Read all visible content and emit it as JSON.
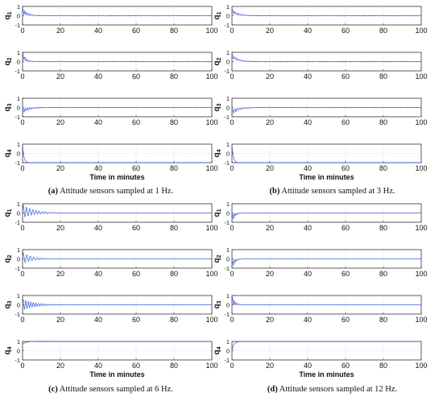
{
  "chart_data": [
    {
      "type": "line",
      "panel": "a",
      "caption_tag": "(a)",
      "caption": "Attitude sensors sampled at 1 Hz.",
      "xlabel": "Time in minutes",
      "xlim": [
        0,
        100
      ],
      "xticks": [
        0,
        20,
        40,
        60,
        80,
        100
      ],
      "grid": true,
      "line_color": "#3b5bdb",
      "subplots": [
        {
          "name": "q",
          "sub": "1",
          "ylim": [
            -1,
            1
          ],
          "yticks": [
            -1,
            0,
            1
          ],
          "final": 0,
          "initial": 0.5,
          "amp": 0.3,
          "tau": 2.5,
          "cycles_per_min": 1.0,
          "noise": 0.025
        },
        {
          "name": "q",
          "sub": "2",
          "ylim": [
            -1,
            1
          ],
          "yticks": [
            -1,
            0,
            1
          ],
          "final": 0,
          "initial": 0.7,
          "amp": 0.35,
          "tau": 1.5,
          "cycles_per_min": 1.1,
          "noise": 0.03
        },
        {
          "name": "q",
          "sub": "3",
          "ylim": [
            -1,
            1
          ],
          "yticks": [
            -1,
            0,
            1
          ],
          "final": 0,
          "initial": -0.4,
          "amp": 0.3,
          "tau": 3,
          "cycles_per_min": 0.9,
          "noise": 0.025
        },
        {
          "name": "q",
          "sub": "4",
          "ylim": [
            -1,
            1
          ],
          "yticks": [
            -1,
            0,
            1
          ],
          "final": -1,
          "initial": 0.9,
          "amp": 0,
          "tau": 0.7,
          "cycles_per_min": 0,
          "noise": 0.0
        }
      ]
    },
    {
      "type": "line",
      "panel": "b",
      "caption_tag": "(b)",
      "caption": "Attitude sensors sampled at 3 Hz.",
      "xlabel": "Time in minutes",
      "xlim": [
        0,
        100
      ],
      "xticks": [
        0,
        20,
        40,
        60,
        80,
        100
      ],
      "grid": true,
      "line_color": "#3b5bdb",
      "subplots": [
        {
          "name": "q",
          "sub": "1",
          "ylim": [
            -1,
            1
          ],
          "yticks": [
            -1,
            0,
            1
          ],
          "final": 0,
          "initial": 0.5,
          "amp": 0.25,
          "tau": 3,
          "cycles_per_min": 0.9,
          "noise": 0.03
        },
        {
          "name": "q",
          "sub": "2",
          "ylim": [
            -1,
            1
          ],
          "yticks": [
            -1,
            0,
            1
          ],
          "final": 0,
          "initial": 0.6,
          "amp": 0.2,
          "tau": 3,
          "cycles_per_min": 0.9,
          "noise": 0.035
        },
        {
          "name": "q",
          "sub": "3",
          "ylim": [
            -1,
            1
          ],
          "yticks": [
            -1,
            0,
            1
          ],
          "final": 0,
          "initial": -0.5,
          "amp": 0.3,
          "tau": 3.5,
          "cycles_per_min": 0.8,
          "noise": 0.03
        },
        {
          "name": "q",
          "sub": "4",
          "ylim": [
            -1,
            1
          ],
          "yticks": [
            -1,
            0,
            1
          ],
          "final": -1,
          "initial": 0.9,
          "amp": 0,
          "tau": 0.7,
          "cycles_per_min": 0,
          "noise": 0.0
        }
      ]
    },
    {
      "type": "line",
      "panel": "c",
      "caption_tag": "(c)",
      "caption": "Attitude sensors sampled at 6 Hz.",
      "xlabel": "Time in minutes",
      "xlim": [
        0,
        100
      ],
      "xticks": [
        0,
        20,
        40,
        60,
        80,
        100
      ],
      "grid": true,
      "line_color": "#3b5bdb",
      "subplots": [
        {
          "name": "q",
          "sub": "1",
          "ylim": [
            -1,
            1
          ],
          "yticks": [
            -1,
            0,
            1
          ],
          "final": 0,
          "initial": 0.2,
          "amp": 0.7,
          "tau": 6,
          "cycles_per_min": 0.6,
          "noise": 0.01
        },
        {
          "name": "q",
          "sub": "2",
          "ylim": [
            -1,
            1
          ],
          "yticks": [
            -1,
            0,
            1
          ],
          "final": 0,
          "initial": 0.1,
          "amp": 0.6,
          "tau": 5,
          "cycles_per_min": 0.55,
          "noise": 0.01
        },
        {
          "name": "q",
          "sub": "3",
          "ylim": [
            -1,
            1
          ],
          "yticks": [
            -1,
            0,
            1
          ],
          "final": 0,
          "initial": 0.0,
          "amp": 0.6,
          "tau": 6,
          "cycles_per_min": 0.75,
          "noise": 0.01
        },
        {
          "name": "q",
          "sub": "4",
          "ylim": [
            -1,
            1
          ],
          "yticks": [
            -1,
            0,
            1
          ],
          "final": 1,
          "initial": 0.7,
          "amp": 0.25,
          "tau": 4,
          "cycles_per_min": 0.05,
          "noise": 0.0
        }
      ]
    },
    {
      "type": "line",
      "panel": "d",
      "caption_tag": "(d)",
      "caption": "Attitude sensors sampled at 12 Hz.",
      "xlabel": "Time in minutes",
      "xlim": [
        0,
        100
      ],
      "xticks": [
        0,
        20,
        40,
        60,
        80,
        100
      ],
      "grid": true,
      "line_color": "#3b5bdb",
      "subplots": [
        {
          "name": "q",
          "sub": "1",
          "ylim": [
            -1,
            1
          ],
          "yticks": [
            -1,
            0,
            1
          ],
          "final": 0,
          "initial": -0.6,
          "amp": 0.5,
          "tau": 1.5,
          "cycles_per_min": 1.0,
          "noise": 0.005
        },
        {
          "name": "q",
          "sub": "2",
          "ylim": [
            -1,
            1
          ],
          "yticks": [
            -1,
            0,
            1
          ],
          "final": 0,
          "initial": -0.7,
          "amp": 0.5,
          "tau": 1.5,
          "cycles_per_min": 1.0,
          "noise": 0.005
        },
        {
          "name": "q",
          "sub": "3",
          "ylim": [
            -1,
            1
          ],
          "yticks": [
            -1,
            0,
            1
          ],
          "final": 0,
          "initial": 0.5,
          "amp": 0.5,
          "tau": 1.5,
          "cycles_per_min": 1.0,
          "noise": 0.005
        },
        {
          "name": "q",
          "sub": "4",
          "ylim": [
            -1,
            1
          ],
          "yticks": [
            -1,
            0,
            1
          ],
          "final": 1,
          "initial": 0.0,
          "amp": 0.0,
          "tau": 1.0,
          "cycles_per_min": 0,
          "noise": 0.0
        }
      ]
    }
  ]
}
